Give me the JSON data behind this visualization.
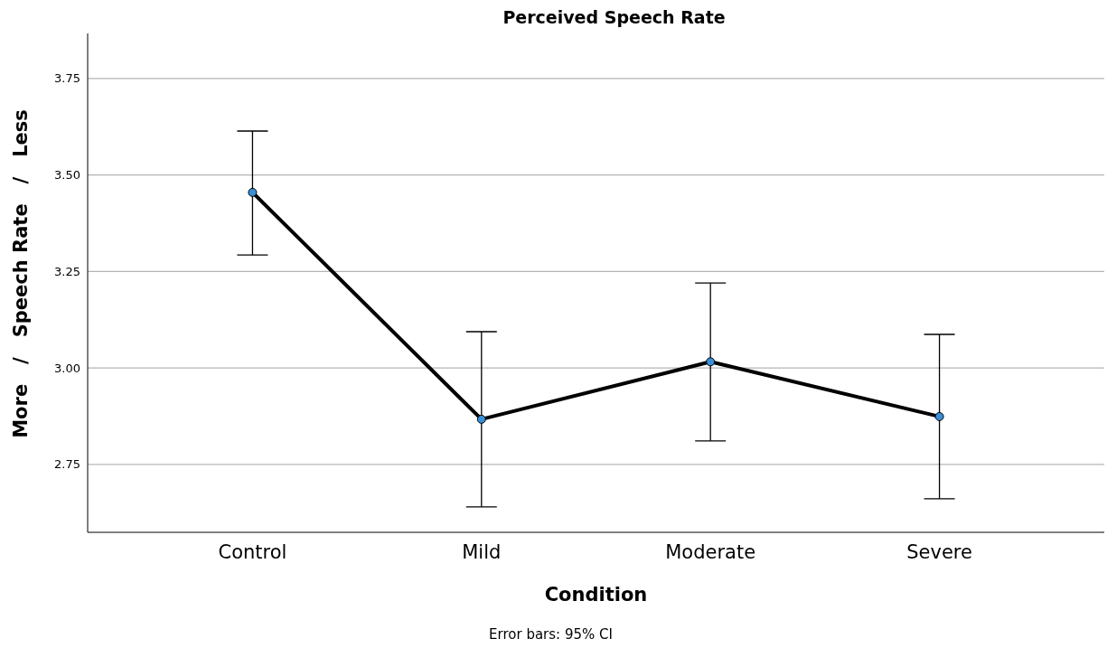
{
  "chart_data": {
    "type": "line",
    "title": "Perceived Speech Rate",
    "xlabel": "Condition",
    "ylabel": "More   /   Speech Rate   /   Less",
    "categories": [
      "Control",
      "Mild",
      "Moderate",
      "Severe"
    ],
    "series": [
      {
        "color": "#000000",
        "values": [
          3.455,
          2.867,
          3.016,
          2.874
        ],
        "errors": [
          [
            3.293,
            3.614
          ],
          [
            2.64,
            3.094
          ],
          [
            2.811,
            3.22
          ],
          [
            2.661,
            3.087
          ]
        ]
      }
    ],
    "marker": "circle",
    "line_style": "solid",
    "grid": "y",
    "ylim": [
      2.574,
      3.867
    ],
    "yticks": [
      {
        "value": 2.75,
        "label": "2.75"
      },
      {
        "value": 3,
        "label": "3.00"
      },
      {
        "value": 3.25,
        "label": "3.25"
      },
      {
        "value": 3.5,
        "label": "3.50"
      },
      {
        "value": 3.75,
        "label": "3.75"
      }
    ],
    "annotations": [
      "Error bars: 95% CI"
    ]
  }
}
